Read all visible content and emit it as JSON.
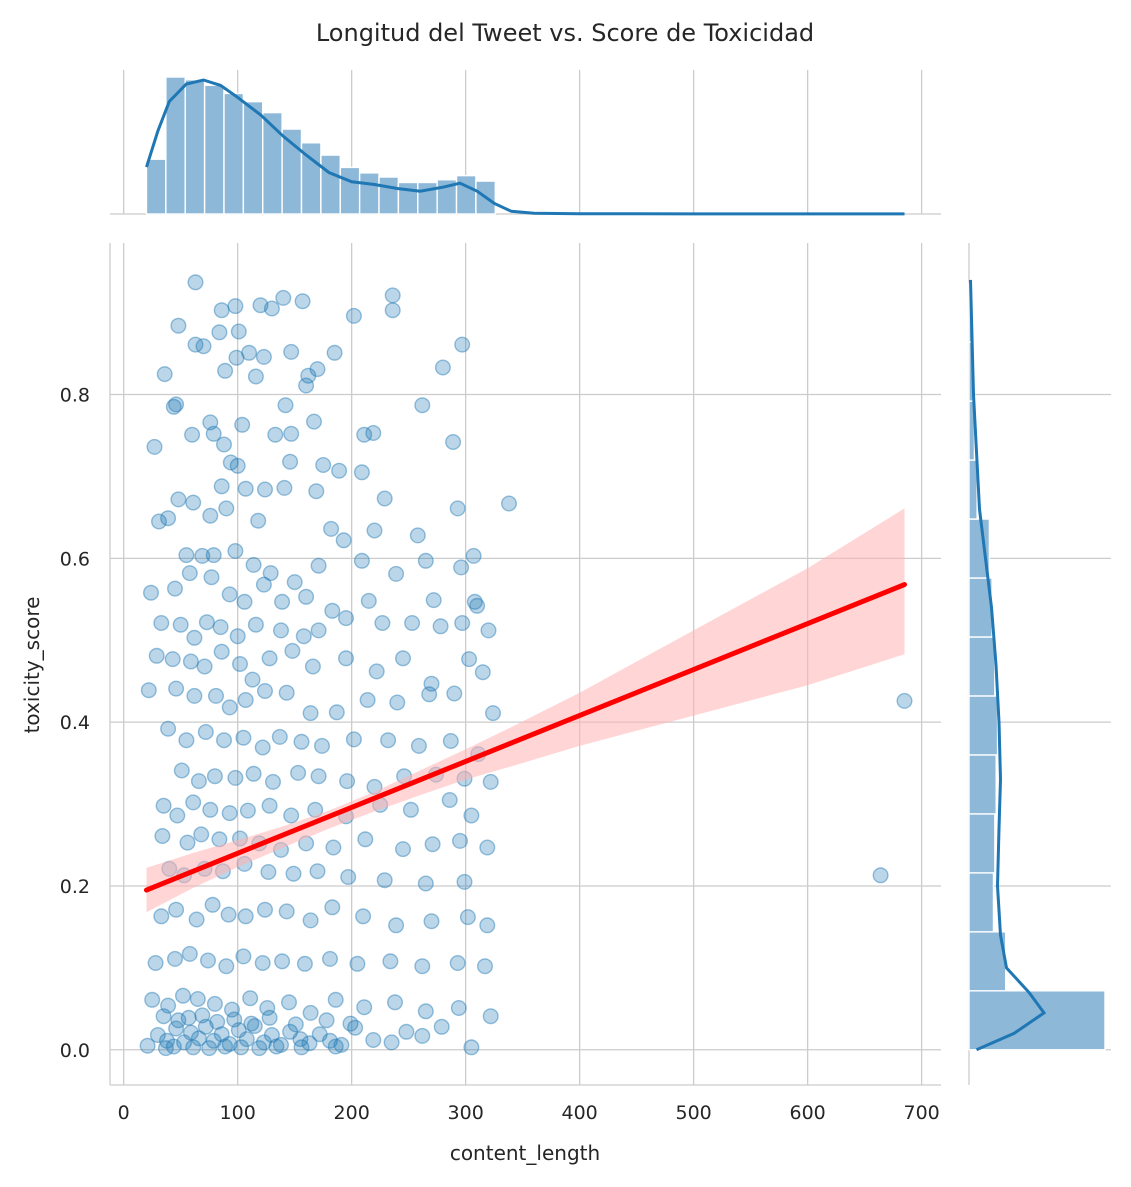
{
  "chart_data": {
    "type": "scatter",
    "title": "Longitud del Tweet vs. Score de Toxicidad",
    "xlabel": "content_length",
    "ylabel": "toxicity_score",
    "xlim": [
      -12,
      717
    ],
    "ylim": [
      -0.043,
      0.985
    ],
    "xticks": [
      0,
      100,
      200,
      300,
      400,
      500,
      600,
      700
    ],
    "yticks": [
      0.0,
      0.2,
      0.4,
      0.6,
      0.8
    ],
    "xtick_labels": [
      "0",
      "100",
      "200",
      "300",
      "400",
      "500",
      "600",
      "700"
    ],
    "ytick_labels": [
      "0.0",
      "0.2",
      "0.4",
      "0.6",
      "0.8"
    ],
    "grid": true,
    "colors": {
      "points": "#1f77b4",
      "regression_line": "#ff0000",
      "confidence_band": "#ffb3b3",
      "histogram": "#8db8d8",
      "kde": "#1f77b4",
      "grid": "#cccccc"
    },
    "scatter_points": [
      [
        63,
        0.937
      ],
      [
        236,
        0.921
      ],
      [
        140,
        0.918
      ],
      [
        157,
        0.914
      ],
      [
        98,
        0.908
      ],
      [
        120,
        0.909
      ],
      [
        86,
        0.903
      ],
      [
        236,
        0.903
      ],
      [
        202,
        0.896
      ],
      [
        48,
        0.884
      ],
      [
        130,
        0.905
      ],
      [
        297,
        0.861
      ],
      [
        84,
        0.876
      ],
      [
        101,
        0.877
      ],
      [
        185,
        0.851
      ],
      [
        70,
        0.859
      ],
      [
        63,
        0.861
      ],
      [
        110,
        0.851
      ],
      [
        147,
        0.852
      ],
      [
        123,
        0.846
      ],
      [
        99,
        0.845
      ],
      [
        170,
        0.831
      ],
      [
        280,
        0.833
      ],
      [
        116,
        0.822
      ],
      [
        89,
        0.829
      ],
      [
        36,
        0.825
      ],
      [
        160,
        0.811
      ],
      [
        162,
        0.823
      ],
      [
        142,
        0.787
      ],
      [
        44,
        0.785
      ],
      [
        46,
        0.788
      ],
      [
        262,
        0.787
      ],
      [
        104,
        0.763
      ],
      [
        76,
        0.766
      ],
      [
        27,
        0.736
      ],
      [
        79,
        0.752
      ],
      [
        60,
        0.751
      ],
      [
        133,
        0.751
      ],
      [
        147,
        0.752
      ],
      [
        167,
        0.767
      ],
      [
        219,
        0.753
      ],
      [
        211,
        0.751
      ],
      [
        289,
        0.742
      ],
      [
        88,
        0.739
      ],
      [
        94,
        0.717
      ],
      [
        100,
        0.713
      ],
      [
        146,
        0.718
      ],
      [
        175,
        0.714
      ],
      [
        189,
        0.707
      ],
      [
        209,
        0.705
      ],
      [
        86,
        0.688
      ],
      [
        107,
        0.685
      ],
      [
        124,
        0.684
      ],
      [
        141,
        0.686
      ],
      [
        169,
        0.682
      ],
      [
        229,
        0.673
      ],
      [
        338,
        0.667
      ],
      [
        48,
        0.672
      ],
      [
        61,
        0.668
      ],
      [
        76,
        0.652
      ],
      [
        90,
        0.661
      ],
      [
        118,
        0.646
      ],
      [
        182,
        0.636
      ],
      [
        193,
        0.622
      ],
      [
        220,
        0.634
      ],
      [
        258,
        0.628
      ],
      [
        293,
        0.661
      ],
      [
        31,
        0.645
      ],
      [
        39,
        0.649
      ],
      [
        55,
        0.604
      ],
      [
        69,
        0.603
      ],
      [
        79,
        0.604
      ],
      [
        98,
        0.609
      ],
      [
        114,
        0.592
      ],
      [
        129,
        0.582
      ],
      [
        150,
        0.571
      ],
      [
        171,
        0.591
      ],
      [
        209,
        0.597
      ],
      [
        239,
        0.581
      ],
      [
        265,
        0.597
      ],
      [
        296,
        0.589
      ],
      [
        307,
        0.603
      ],
      [
        24,
        0.558
      ],
      [
        45,
        0.563
      ],
      [
        58,
        0.582
      ],
      [
        77,
        0.577
      ],
      [
        93,
        0.556
      ],
      [
        106,
        0.547
      ],
      [
        123,
        0.568
      ],
      [
        139,
        0.547
      ],
      [
        160,
        0.553
      ],
      [
        183,
        0.536
      ],
      [
        215,
        0.548
      ],
      [
        272,
        0.549
      ],
      [
        308,
        0.547
      ],
      [
        310,
        0.542
      ],
      [
        33,
        0.521
      ],
      [
        50,
        0.519
      ],
      [
        62,
        0.503
      ],
      [
        73,
        0.522
      ],
      [
        85,
        0.516
      ],
      [
        100,
        0.505
      ],
      [
        116,
        0.519
      ],
      [
        138,
        0.512
      ],
      [
        158,
        0.505
      ],
      [
        171,
        0.512
      ],
      [
        195,
        0.527
      ],
      [
        227,
        0.521
      ],
      [
        253,
        0.521
      ],
      [
        278,
        0.517
      ],
      [
        297,
        0.521
      ],
      [
        320,
        0.512
      ],
      [
        29,
        0.481
      ],
      [
        43,
        0.477
      ],
      [
        59,
        0.474
      ],
      [
        71,
        0.468
      ],
      [
        86,
        0.486
      ],
      [
        102,
        0.471
      ],
      [
        113,
        0.452
      ],
      [
        128,
        0.478
      ],
      [
        148,
        0.487
      ],
      [
        166,
        0.468
      ],
      [
        195,
        0.478
      ],
      [
        222,
        0.462
      ],
      [
        245,
        0.478
      ],
      [
        270,
        0.447
      ],
      [
        303,
        0.477
      ],
      [
        315,
        0.461
      ],
      [
        22,
        0.439
      ],
      [
        46,
        0.441
      ],
      [
        62,
        0.432
      ],
      [
        81,
        0.432
      ],
      [
        93,
        0.418
      ],
      [
        107,
        0.427
      ],
      [
        124,
        0.438
      ],
      [
        143,
        0.436
      ],
      [
        164,
        0.411
      ],
      [
        187,
        0.412
      ],
      [
        214,
        0.427
      ],
      [
        240,
        0.424
      ],
      [
        268,
        0.434
      ],
      [
        290,
        0.435
      ],
      [
        324,
        0.411
      ],
      [
        685,
        0.426
      ],
      [
        39,
        0.392
      ],
      [
        55,
        0.378
      ],
      [
        72,
        0.388
      ],
      [
        88,
        0.378
      ],
      [
        105,
        0.381
      ],
      [
        122,
        0.369
      ],
      [
        137,
        0.382
      ],
      [
        156,
        0.376
      ],
      [
        174,
        0.371
      ],
      [
        202,
        0.379
      ],
      [
        232,
        0.378
      ],
      [
        259,
        0.371
      ],
      [
        287,
        0.377
      ],
      [
        311,
        0.361
      ],
      [
        51,
        0.341
      ],
      [
        66,
        0.328
      ],
      [
        80,
        0.334
      ],
      [
        98,
        0.332
      ],
      [
        114,
        0.337
      ],
      [
        131,
        0.327
      ],
      [
        153,
        0.338
      ],
      [
        171,
        0.334
      ],
      [
        196,
        0.328
      ],
      [
        220,
        0.321
      ],
      [
        246,
        0.334
      ],
      [
        274,
        0.336
      ],
      [
        299,
        0.331
      ],
      [
        322,
        0.327
      ],
      [
        35,
        0.298
      ],
      [
        47,
        0.286
      ],
      [
        61,
        0.302
      ],
      [
        76,
        0.293
      ],
      [
        93,
        0.289
      ],
      [
        109,
        0.292
      ],
      [
        128,
        0.298
      ],
      [
        147,
        0.286
      ],
      [
        168,
        0.293
      ],
      [
        195,
        0.285
      ],
      [
        225,
        0.299
      ],
      [
        252,
        0.293
      ],
      [
        286,
        0.305
      ],
      [
        305,
        0.286
      ],
      [
        34,
        0.261
      ],
      [
        56,
        0.253
      ],
      [
        68,
        0.263
      ],
      [
        84,
        0.257
      ],
      [
        102,
        0.258
      ],
      [
        119,
        0.252
      ],
      [
        138,
        0.244
      ],
      [
        160,
        0.252
      ],
      [
        184,
        0.247
      ],
      [
        212,
        0.257
      ],
      [
        245,
        0.245
      ],
      [
        271,
        0.251
      ],
      [
        295,
        0.255
      ],
      [
        319,
        0.247
      ],
      [
        40,
        0.221
      ],
      [
        53,
        0.213
      ],
      [
        71,
        0.221
      ],
      [
        87,
        0.218
      ],
      [
        106,
        0.227
      ],
      [
        127,
        0.217
      ],
      [
        149,
        0.215
      ],
      [
        170,
        0.218
      ],
      [
        197,
        0.211
      ],
      [
        229,
        0.207
      ],
      [
        265,
        0.203
      ],
      [
        299,
        0.205
      ],
      [
        664,
        0.213
      ],
      [
        33,
        0.163
      ],
      [
        46,
        0.171
      ],
      [
        64,
        0.159
      ],
      [
        78,
        0.177
      ],
      [
        92,
        0.165
      ],
      [
        107,
        0.163
      ],
      [
        124,
        0.171
      ],
      [
        143,
        0.169
      ],
      [
        164,
        0.158
      ],
      [
        183,
        0.174
      ],
      [
        210,
        0.163
      ],
      [
        239,
        0.152
      ],
      [
        270,
        0.157
      ],
      [
        302,
        0.162
      ],
      [
        319,
        0.152
      ],
      [
        28,
        0.106
      ],
      [
        45,
        0.111
      ],
      [
        58,
        0.117
      ],
      [
        74,
        0.109
      ],
      [
        90,
        0.102
      ],
      [
        105,
        0.114
      ],
      [
        122,
        0.106
      ],
      [
        139,
        0.108
      ],
      [
        159,
        0.105
      ],
      [
        181,
        0.111
      ],
      [
        205,
        0.105
      ],
      [
        234,
        0.108
      ],
      [
        262,
        0.102
      ],
      [
        293,
        0.106
      ],
      [
        317,
        0.102
      ],
      [
        25,
        0.061
      ],
      [
        39,
        0.054
      ],
      [
        52,
        0.066
      ],
      [
        65,
        0.062
      ],
      [
        80,
        0.056
      ],
      [
        95,
        0.049
      ],
      [
        111,
        0.063
      ],
      [
        126,
        0.051
      ],
      [
        145,
        0.058
      ],
      [
        164,
        0.045
      ],
      [
        186,
        0.061
      ],
      [
        211,
        0.052
      ],
      [
        238,
        0.058
      ],
      [
        265,
        0.047
      ],
      [
        294,
        0.051
      ],
      [
        322,
        0.041
      ],
      [
        30,
        0.018
      ],
      [
        38,
        0.011
      ],
      [
        46,
        0.026
      ],
      [
        53,
        0.009
      ],
      [
        59,
        0.021
      ],
      [
        66,
        0.014
      ],
      [
        72,
        0.028
      ],
      [
        79,
        0.011
      ],
      [
        86,
        0.019
      ],
      [
        93,
        0.007
      ],
      [
        101,
        0.024
      ],
      [
        108,
        0.013
      ],
      [
        115,
        0.029
      ],
      [
        123,
        0.009
      ],
      [
        130,
        0.018
      ],
      [
        138,
        0.006
      ],
      [
        146,
        0.022
      ],
      [
        155,
        0.013
      ],
      [
        163,
        0.008
      ],
      [
        172,
        0.019
      ],
      [
        181,
        0.011
      ],
      [
        191,
        0.006
      ],
      [
        203,
        0.027
      ],
      [
        219,
        0.012
      ],
      [
        235,
        0.009
      ],
      [
        248,
        0.022
      ],
      [
        262,
        0.017
      ],
      [
        279,
        0.028
      ],
      [
        305,
        0.003
      ],
      [
        35,
        0.041
      ],
      [
        48,
        0.036
      ],
      [
        57,
        0.039
      ],
      [
        69,
        0.042
      ],
      [
        82,
        0.034
      ],
      [
        97,
        0.037
      ],
      [
        112,
        0.032
      ],
      [
        128,
        0.039
      ],
      [
        151,
        0.031
      ],
      [
        178,
        0.036
      ],
      [
        199,
        0.032
      ],
      [
        37,
        0.002
      ],
      [
        44,
        0.004
      ],
      [
        61,
        0.003
      ],
      [
        75,
        0.002
      ],
      [
        89,
        0.004
      ],
      [
        103,
        0.003
      ],
      [
        119,
        0.002
      ],
      [
        134,
        0.004
      ],
      [
        156,
        0.003
      ],
      [
        186,
        0.004
      ],
      [
        21,
        0.005
      ]
    ],
    "regression_line": {
      "x": [
        20,
        685
      ],
      "y": [
        0.195,
        0.568
      ]
    },
    "confidence_band": {
      "x": [
        20,
        60,
        100,
        140,
        180,
        220,
        260,
        300,
        340,
        400,
        500,
        600,
        685
      ],
      "lower": [
        0.168,
        0.197,
        0.223,
        0.247,
        0.27,
        0.291,
        0.311,
        0.33,
        0.346,
        0.371,
        0.408,
        0.445,
        0.483
      ],
      "upper": [
        0.222,
        0.24,
        0.256,
        0.273,
        0.292,
        0.315,
        0.341,
        0.367,
        0.394,
        0.436,
        0.512,
        0.588,
        0.661
      ]
    },
    "top_histogram": {
      "bin_edges": [
        20,
        37,
        54,
        71,
        88,
        105,
        122,
        139,
        156,
        173,
        190,
        207,
        224,
        241,
        258,
        275,
        292,
        309,
        326
      ],
      "counts": [
        0.4,
        1.0,
        0.98,
        0.94,
        0.88,
        0.82,
        0.74,
        0.62,
        0.52,
        0.43,
        0.34,
        0.3,
        0.27,
        0.23,
        0.23,
        0.25,
        0.28,
        0.24
      ]
    },
    "top_kde": {
      "x": [
        20,
        30,
        40,
        55,
        70,
        85,
        100,
        120,
        140,
        160,
        180,
        200,
        220,
        240,
        260,
        280,
        295,
        310,
        325,
        340,
        360,
        400,
        500,
        600,
        685
      ],
      "density": [
        0.35,
        0.62,
        0.84,
        0.97,
        1.0,
        0.96,
        0.87,
        0.74,
        0.58,
        0.44,
        0.31,
        0.24,
        0.22,
        0.19,
        0.17,
        0.2,
        0.23,
        0.17,
        0.08,
        0.02,
        0.005,
        0.002,
        0.001,
        0.001,
        0.001
      ]
    },
    "right_histogram": {
      "bin_edges": [
        0.0,
        0.072,
        0.144,
        0.216,
        0.288,
        0.36,
        0.432,
        0.504,
        0.576,
        0.648,
        0.72,
        0.792,
        0.864,
        0.936
      ],
      "counts": [
        1.0,
        0.27,
        0.18,
        0.19,
        0.2,
        0.21,
        0.19,
        0.17,
        0.15,
        0.06,
        0.04,
        0.03,
        0.02
      ]
    },
    "right_kde": {
      "y": [
        0.0,
        0.02,
        0.045,
        0.07,
        0.1,
        0.14,
        0.2,
        0.27,
        0.33,
        0.4,
        0.47,
        0.54,
        0.6,
        0.66,
        0.73,
        0.8,
        0.87,
        0.94
      ],
      "density": [
        0.05,
        0.3,
        0.5,
        0.4,
        0.25,
        0.21,
        0.19,
        0.2,
        0.21,
        0.2,
        0.18,
        0.15,
        0.11,
        0.07,
        0.05,
        0.03,
        0.02,
        0.01
      ]
    }
  }
}
